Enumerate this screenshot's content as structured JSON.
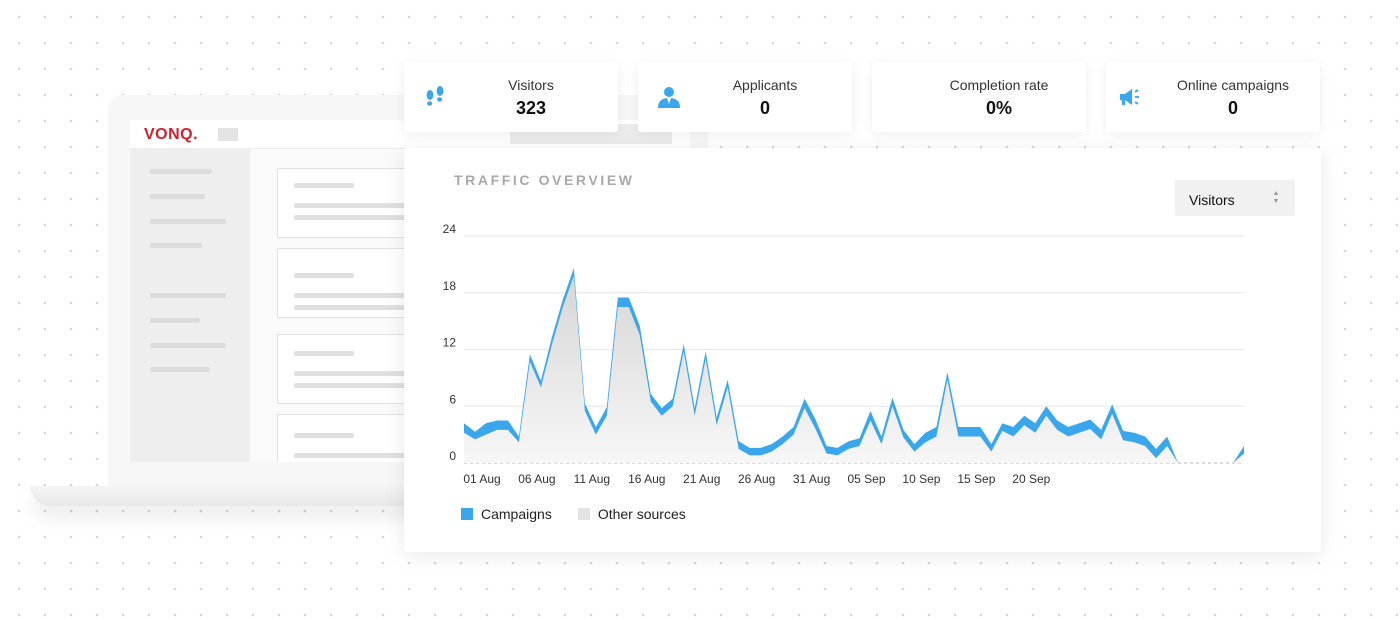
{
  "app": {
    "logo_text": "VONQ."
  },
  "stats": [
    {
      "label": "Visitors",
      "value": "323",
      "icon": "footsteps-icon"
    },
    {
      "label": "Applicants",
      "value": "0",
      "icon": "user-icon"
    },
    {
      "label": "Completion rate",
      "value": "0%",
      "icon": ""
    },
    {
      "label": "Online campaigns",
      "value": "0",
      "icon": "megaphone-icon"
    }
  ],
  "panel": {
    "title": "TRAFFIC OVERVIEW",
    "selector": {
      "selected": "Visitors"
    }
  },
  "colors": {
    "campaigns": "#3aa7ec",
    "other_sources": "#e3e3e3",
    "brand_red": "#d0202e"
  },
  "chart_data": {
    "type": "area",
    "y_ticks": [
      "24",
      "18",
      "12",
      "6",
      "0"
    ],
    "ylim": [
      0,
      24
    ],
    "x_tick_labels": [
      "01 Aug",
      "06 Aug",
      "11 Aug",
      "16 Aug",
      "21 Aug",
      "26 Aug",
      "31 Aug",
      "05 Sep",
      "10 Sep",
      "15 Sep",
      "20 Sep"
    ],
    "grid": true,
    "legend_position": "bottom-left",
    "stacked": true,
    "series": [
      {
        "name": "Other sources",
        "values": [
          3.2,
          2.5,
          3,
          3.5,
          3.5,
          2.2,
          10.7,
          8,
          12.5,
          16.5,
          19.8,
          5.5,
          3,
          5,
          16.5,
          16.5,
          13.5,
          6.5,
          5,
          6,
          11.8,
          5,
          11,
          4,
          8,
          1.5,
          0.8,
          0.8,
          1.2,
          2,
          3,
          5.8,
          3.6,
          1,
          0.8,
          1.5,
          1.8,
          4.5,
          2,
          6,
          2.7,
          1.2,
          2.2,
          2.8,
          8.8,
          2.8,
          2.8,
          2.8,
          1.2,
          3.4,
          2.8,
          4,
          3.2,
          5,
          3.5,
          2.8,
          3.2,
          3.6,
          2.5,
          5.2,
          2.4,
          2.2,
          1.8,
          0.5,
          1.8,
          0,
          0,
          0,
          0,
          0,
          0,
          1
        ]
      },
      {
        "name": "Campaigns",
        "values": [
          1,
          0.8,
          1.2,
          1,
          1,
          0.6,
          0.8,
          0.7,
          0.8,
          0.8,
          0.8,
          0.8,
          0.8,
          0.9,
          1,
          1,
          1,
          0.8,
          0.8,
          0.8,
          0.8,
          0.8,
          0.8,
          0.8,
          0.8,
          0.8,
          0.8,
          0.8,
          0.8,
          0.8,
          0.8,
          1,
          1,
          0.8,
          0.8,
          0.8,
          0.8,
          1,
          0.8,
          0.9,
          0.8,
          0.8,
          1,
          1,
          0.8,
          1,
          1,
          1,
          0.8,
          0.8,
          1,
          1,
          1,
          1,
          1,
          1,
          1,
          1,
          1,
          1,
          1,
          1,
          1,
          1,
          1,
          0,
          0,
          0,
          0,
          0,
          0,
          0.8
        ]
      }
    ]
  }
}
